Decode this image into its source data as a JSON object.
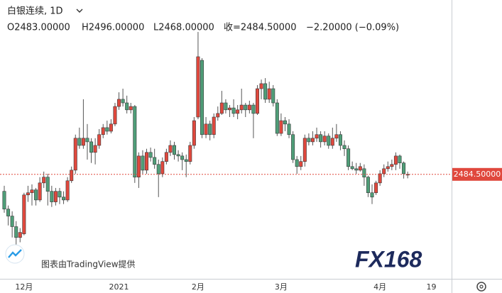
{
  "chart_data": {
    "type": "candlestick",
    "title": "白银连续, 1D",
    "ohlc_header": {
      "open": "O2483.00000",
      "high": "H2496.00000",
      "low": "L2468.00000",
      "close": "收=2484.50000",
      "change": "−2.20000 (−0.09%)"
    },
    "categories": [
      null,
      null,
      null,
      null,
      null,
      "12月",
      null,
      null,
      null,
      null,
      null,
      null,
      null,
      null,
      null,
      null,
      null,
      null,
      null,
      null,
      null,
      null,
      null,
      null,
      null,
      null,
      null,
      null,
      null,
      "2021",
      null,
      null,
      null,
      null,
      null,
      null,
      null,
      null,
      null,
      null,
      null,
      null,
      null,
      null,
      null,
      null,
      null,
      null,
      null,
      "2月",
      null,
      null,
      null,
      null,
      null,
      null,
      null,
      null,
      null,
      null,
      null,
      null,
      null,
      null,
      null,
      null,
      null,
      null,
      null,
      null,
      "3月",
      null,
      null,
      null,
      null,
      null,
      null,
      null,
      null,
      null,
      null,
      null,
      null,
      null,
      null,
      null,
      null,
      null,
      null,
      null,
      null,
      null,
      null,
      null,
      null,
      "4月",
      null,
      null,
      null,
      null,
      null,
      null,
      null,
      null,
      null,
      null,
      null,
      null,
      "19"
    ],
    "open": [
      2414,
      2340,
      2311,
      2267,
      2222,
      2237,
      2399,
      2408,
      2420,
      2378,
      2449,
      2473,
      2414,
      2370,
      2414,
      2390,
      2378,
      2458,
      2502,
      2635,
      2605,
      2635,
      2620,
      2576,
      2605,
      2650,
      2679,
      2664,
      2694,
      2767,
      2797,
      2782,
      2753,
      2767,
      2473,
      2561,
      2502,
      2576,
      2555,
      2526,
      2487,
      2538,
      2576,
      2605,
      2567,
      2561,
      2546,
      2538,
      2605,
      2723,
      2959,
      2650,
      2694,
      2650,
      2723,
      2738,
      2782,
      2753,
      2761,
      2738,
      2753,
      2773,
      2753,
      2773,
      2738,
      2841,
      2862,
      2797,
      2841,
      2782,
      2655,
      2708,
      2694,
      2650,
      2546,
      2517,
      2538,
      2635,
      2620,
      2635,
      2650,
      2620,
      2644,
      2605,
      2635,
      2650,
      2605,
      2591,
      2517,
      2508,
      2502,
      2508,
      2473,
      2408,
      2408,
      2449,
      2487,
      2508,
      2517,
      2526,
      2561,
      2532,
      2483,
      null,
      null,
      null,
      null,
      null,
      null
    ],
    "high": [
      2437,
      2355,
      2331,
      2290,
      2261,
      2408,
      2437,
      2443,
      2428,
      2473,
      2496,
      2487,
      2437,
      2428,
      2428,
      2414,
      2473,
      2517,
      2650,
      2679,
      2797,
      2694,
      2635,
      2635,
      2673,
      2694,
      2708,
      2714,
      2782,
      2826,
      2841,
      2812,
      2782,
      2773,
      2576,
      2585,
      2591,
      2596,
      2591,
      2546,
      2555,
      2591,
      2626,
      2620,
      2585,
      2576,
      2567,
      2620,
      2723,
      3077,
      2968,
      2723,
      2708,
      2738,
      2767,
      2832,
      2797,
      2773,
      2797,
      2773,
      2841,
      2782,
      2791,
      2782,
      2856,
      2879,
      2885,
      2870,
      2856,
      2797,
      2738,
      2723,
      2714,
      2664,
      2561,
      2561,
      2650,
      2655,
      2664,
      2679,
      2664,
      2664,
      2655,
      2679,
      2694,
      2664,
      2626,
      2605,
      2538,
      2532,
      2532,
      2526,
      2479,
      2443,
      2458,
      2502,
      2526,
      2538,
      2546,
      2576,
      2567,
      2538,
      2496,
      null,
      null,
      null,
      null,
      null,
      null
    ],
    "low": [
      2325,
      2272,
      2222,
      2193,
      2202,
      2231,
      2370,
      2355,
      2355,
      2370,
      2428,
      2355,
      2349,
      2355,
      2361,
      2361,
      2370,
      2449,
      2487,
      2591,
      2591,
      2546,
      2532,
      2526,
      2591,
      2635,
      2650,
      2655,
      2685,
      2753,
      2767,
      2738,
      2738,
      2449,
      2428,
      2487,
      2487,
      2538,
      2508,
      2390,
      2473,
      2526,
      2561,
      2546,
      2538,
      2502,
      2473,
      2526,
      2591,
      2714,
      2635,
      2635,
      2626,
      2635,
      2708,
      2732,
      2738,
      2723,
      2723,
      2714,
      2738,
      2723,
      2738,
      2635,
      2732,
      2797,
      2782,
      2782,
      2767,
      2644,
      2644,
      2664,
      2635,
      2532,
      2487,
      2502,
      2517,
      2605,
      2605,
      2620,
      2596,
      2605,
      2591,
      2591,
      2620,
      2585,
      2561,
      2502,
      2502,
      2487,
      2496,
      2437,
      2390,
      2361,
      2399,
      2437,
      2473,
      2496,
      2502,
      2502,
      2508,
      2467,
      2468,
      null,
      null,
      null,
      null,
      null,
      null
    ],
    "close": [
      2340,
      2311,
      2267,
      2222,
      2243,
      2399,
      2408,
      2420,
      2378,
      2449,
      2473,
      2414,
      2370,
      2414,
      2390,
      2378,
      2458,
      2502,
      2635,
      2605,
      2635,
      2620,
      2576,
      2605,
      2650,
      2679,
      2664,
      2694,
      2767,
      2797,
      2782,
      2753,
      2767,
      2473,
      2561,
      2502,
      2576,
      2555,
      2526,
      2487,
      2538,
      2576,
      2605,
      2567,
      2561,
      2546,
      2538,
      2605,
      2708,
      2974,
      2650,
      2694,
      2650,
      2723,
      2738,
      2782,
      2753,
      2761,
      2738,
      2753,
      2773,
      2753,
      2773,
      2738,
      2841,
      2862,
      2797,
      2841,
      2782,
      2655,
      2708,
      2694,
      2650,
      2546,
      2517,
      2538,
      2635,
      2620,
      2635,
      2650,
      2620,
      2644,
      2605,
      2635,
      2650,
      2605,
      2591,
      2517,
      2508,
      2502,
      2517,
      2473,
      2408,
      2390,
      2449,
      2487,
      2508,
      2517,
      2526,
      2561,
      2532,
      2487,
      2484.5,
      null,
      null,
      null,
      null,
      null,
      null
    ],
    "up_color": "#e0483d",
    "down_color": "#4f9e78",
    "ylim": [
      2050,
      3210
    ],
    "last_price": {
      "value": 2484.5,
      "label": "2484.50000"
    },
    "attribution": "图表由TradingView提供",
    "logo": "FX168"
  }
}
